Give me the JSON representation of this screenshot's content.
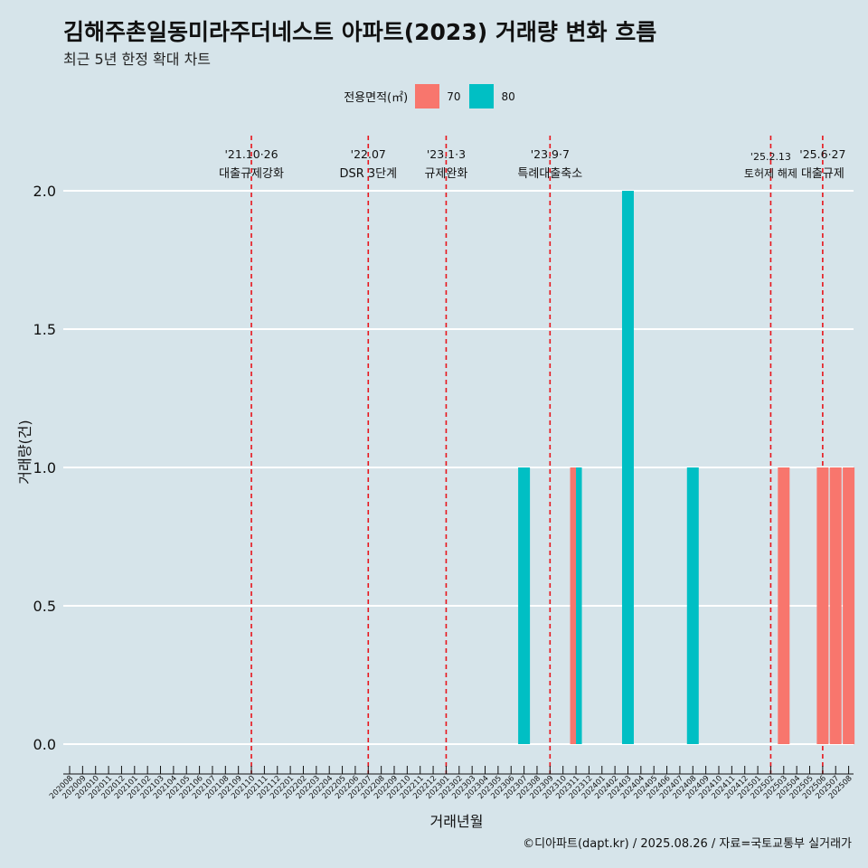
{
  "header": {
    "title": "김해주촌일동미라주더네스트 아파트(2023) 거래량 변화 흐름",
    "subtitle": "최근 5년 한정 확대 차트"
  },
  "legend": {
    "title": "전용면적(㎡)",
    "items": [
      {
        "label": "70",
        "color": "#F8766D"
      },
      {
        "label": "80",
        "color": "#00BFC4"
      }
    ]
  },
  "caption": "©디아파트(dapt.kr) / 2025.08.26 / 자료=국토교통부 실거래가",
  "chart_data": {
    "type": "bar",
    "xlabel": "거래년월",
    "ylabel": "거래량(건)",
    "ylim": [
      0,
      2
    ],
    "yticks": [
      "0.0",
      "0.5",
      "1.0",
      "1.5",
      "2.0"
    ],
    "categories": [
      "202008",
      "202009",
      "202010",
      "202011",
      "202012",
      "202101",
      "202102",
      "202103",
      "202104",
      "202105",
      "202106",
      "202107",
      "202108",
      "202109",
      "202110",
      "202111",
      "202112",
      "202201",
      "202202",
      "202203",
      "202204",
      "202205",
      "202206",
      "202207",
      "202208",
      "202209",
      "202210",
      "202211",
      "202212",
      "202301",
      "202302",
      "202303",
      "202304",
      "202305",
      "202306",
      "202307",
      "202308",
      "202309",
      "202310",
      "202311",
      "202312",
      "202401",
      "202402",
      "202403",
      "202404",
      "202405",
      "202406",
      "202407",
      "202408",
      "202409",
      "202410",
      "202411",
      "202412",
      "202501",
      "202502",
      "202503",
      "202504",
      "202505",
      "202506",
      "202507",
      "202508"
    ],
    "series": [
      {
        "name": "70",
        "color": "#F8766D",
        "points": [
          [
            "202311",
            1
          ],
          [
            "202503",
            1
          ],
          [
            "202506",
            1
          ],
          [
            "202507",
            1
          ],
          [
            "202508",
            1
          ]
        ]
      },
      {
        "name": "80",
        "color": "#00BFC4",
        "points": [
          [
            "202307",
            1
          ],
          [
            "202311",
            1
          ],
          [
            "202403",
            2
          ],
          [
            "202408",
            1
          ]
        ]
      }
    ],
    "annotations": [
      {
        "x": "202110",
        "date": "'21.10·26",
        "label": "대출규제강화"
      },
      {
        "x": "202207",
        "date": "'22.07",
        "label": "DSR 3단계"
      },
      {
        "x": "202301",
        "date": "'23.1·3",
        "label": "규제완화"
      },
      {
        "x": "202309",
        "date": "'23.9·7",
        "label": "특례대출축소"
      },
      {
        "x": "202502",
        "date": "'25.2.13",
        "label": "토허제 해제"
      },
      {
        "x": "202506",
        "date": "'25.6·27",
        "label": "대출규제"
      }
    ]
  }
}
